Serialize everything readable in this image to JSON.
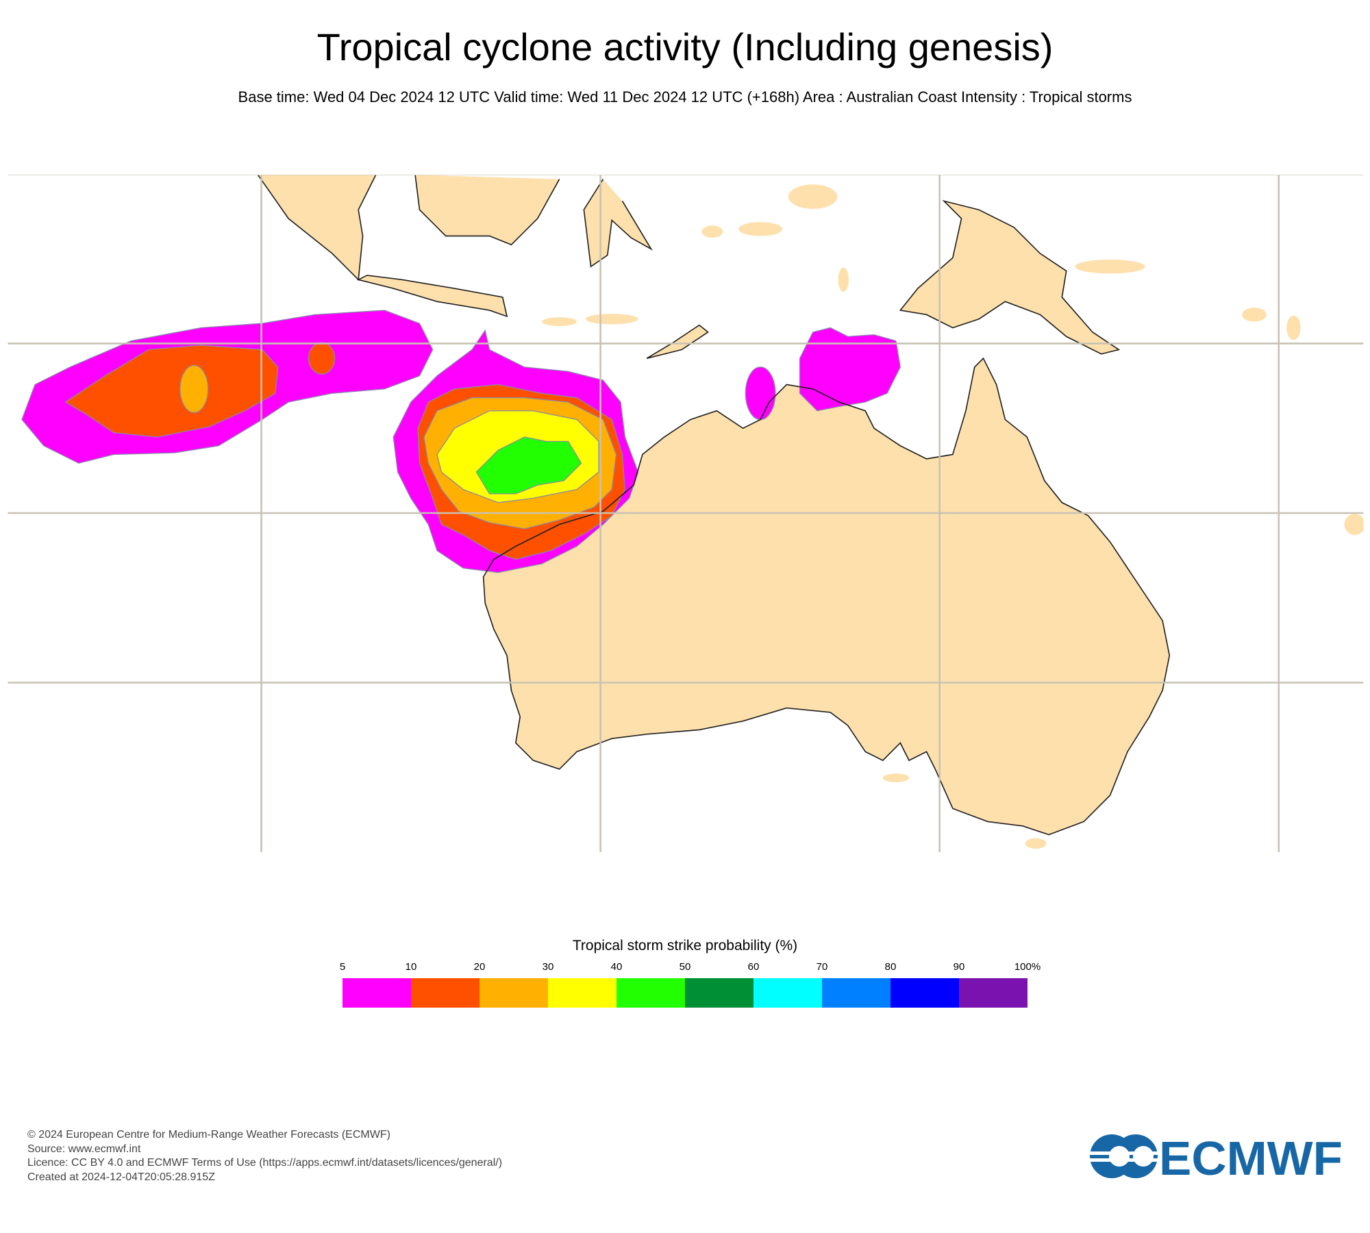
{
  "header": {
    "title": "Tropical cyclone activity (Including genesis)",
    "subtitle": "Base time: Wed 04 Dec 2024 12 UTC Valid time: Wed 11 Dec 2024 12 UTC (+168h) Area : Australian Coast Intensity : Tropical storms"
  },
  "legend": {
    "title": "Tropical storm strike probability (%)",
    "ticks": [
      "5",
      "10",
      "20",
      "30",
      "40",
      "50",
      "60",
      "70",
      "80",
      "90",
      "100%"
    ],
    "colors": [
      "#ff00ff",
      "#ff5000",
      "#ffb000",
      "#ffff00",
      "#22ff00",
      "#008f35",
      "#00ffff",
      "#0080ff",
      "#0000ff",
      "#7a12b0"
    ]
  },
  "map": {
    "land_color": "#fde0ac",
    "grid_color": "#c8c2b4"
  },
  "footer": {
    "copyright": "© 2024 European Centre for Medium-Range Weather Forecasts (ECMWF)",
    "source": "Source: www.ecmwf.int",
    "licence": "Licence: CC BY 4.0 and ECMWF Terms of Use (https://apps.ecmwf.int/datasets/licences/general/)",
    "created": "Created at 2024-12-04T20:05:28.915Z"
  },
  "logo": {
    "text": "ECMWF",
    "color": "#1767a6"
  }
}
